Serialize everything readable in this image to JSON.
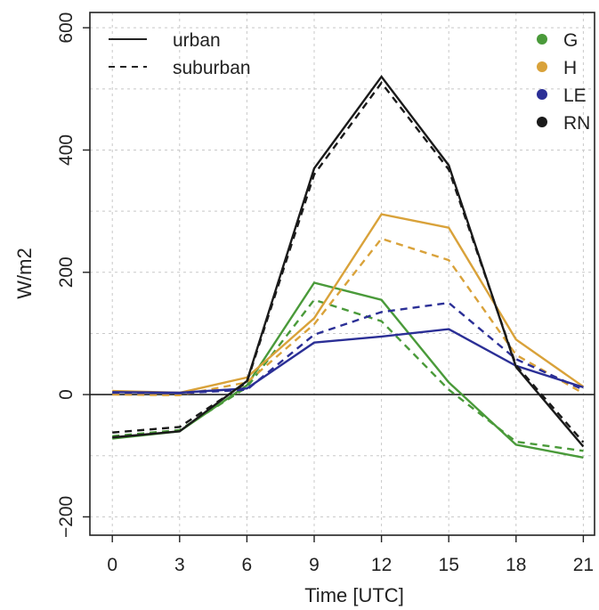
{
  "chart_data": {
    "type": "line",
    "xlabel": "Time [UTC]",
    "ylabel": "W/m2",
    "xlim": [
      -1,
      21.5
    ],
    "ylim": [
      -230,
      625
    ],
    "x": [
      0,
      3,
      6,
      9,
      12,
      15,
      18,
      21
    ],
    "xticks": [
      "0",
      "3",
      "6",
      "9",
      "12",
      "15",
      "18",
      "21"
    ],
    "yticks": [
      -200,
      0,
      200,
      400,
      600
    ],
    "ytick_labels": [
      "−200",
      "0",
      "200",
      "400",
      "600"
    ],
    "grid": true,
    "zero_line": true,
    "linestyle_legend": {
      "placement": "top-left",
      "entries": [
        {
          "label": "urban",
          "style": "solid"
        },
        {
          "label": "suburban",
          "style": "dashed"
        }
      ]
    },
    "color_legend": {
      "placement": "top-right",
      "entries": [
        {
          "label": "G",
          "color": "#4a9a3a"
        },
        {
          "label": "H",
          "color": "#d9a23a"
        },
        {
          "label": "LE",
          "color": "#2b2f96"
        },
        {
          "label": "RN",
          "color": "#1a1a1a"
        }
      ]
    },
    "series": [
      {
        "name": "G",
        "style": "solid",
        "color": "#4a9a3a",
        "values": [
          -72,
          -60,
          15,
          183,
          155,
          20,
          -82,
          -103
        ]
      },
      {
        "name": "G",
        "style": "dashed",
        "color": "#4a9a3a",
        "values": [
          -68,
          -58,
          12,
          155,
          120,
          8,
          -77,
          -92
        ]
      },
      {
        "name": "H",
        "style": "solid",
        "color": "#d9a23a",
        "values": [
          6,
          3,
          28,
          125,
          295,
          273,
          90,
          13
        ]
      },
      {
        "name": "H",
        "style": "dashed",
        "color": "#d9a23a",
        "values": [
          0,
          -1,
          20,
          115,
          255,
          220,
          65,
          2
        ]
      },
      {
        "name": "LE",
        "style": "solid",
        "color": "#2b2f96",
        "values": [
          4,
          3,
          10,
          85,
          95,
          107,
          47,
          12
        ]
      },
      {
        "name": "LE",
        "style": "dashed",
        "color": "#2b2f96",
        "values": [
          3,
          2,
          8,
          98,
          135,
          150,
          58,
          8
        ]
      },
      {
        "name": "RN",
        "style": "solid",
        "color": "#1a1a1a",
        "values": [
          -70,
          -60,
          22,
          370,
          520,
          375,
          45,
          -85
        ]
      },
      {
        "name": "RN",
        "style": "dashed",
        "color": "#1a1a1a",
        "values": [
          -62,
          -53,
          20,
          360,
          510,
          368,
          48,
          -78
        ]
      }
    ]
  }
}
